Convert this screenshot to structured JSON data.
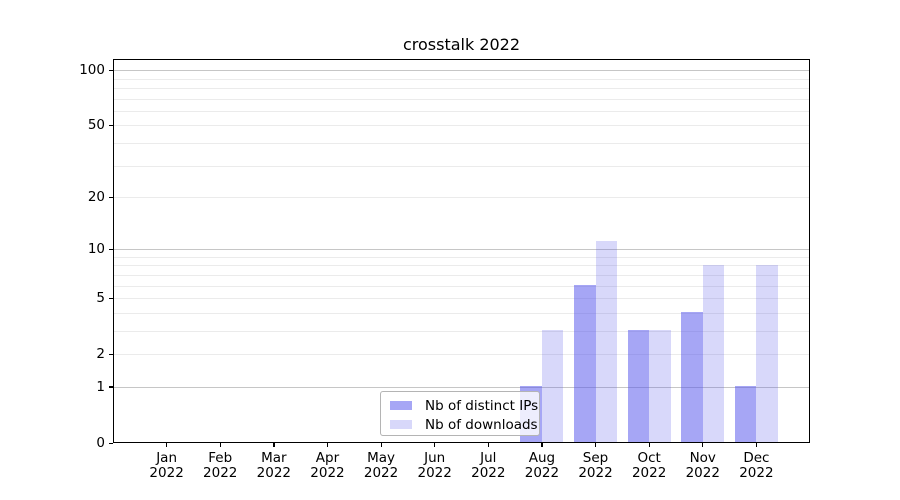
{
  "title": "crosstalk 2022",
  "chart_data": {
    "type": "bar",
    "title": "crosstalk 2022",
    "categories": [
      "Jan 2022",
      "Feb 2022",
      "Mar 2022",
      "Apr 2022",
      "May 2022",
      "Jun 2022",
      "Jul 2022",
      "Aug 2022",
      "Sep 2022",
      "Oct 2022",
      "Nov 2022",
      "Dec 2022"
    ],
    "series": [
      {
        "name": "Nb of distinct IPs",
        "values": [
          0,
          0,
          0,
          0,
          0,
          0,
          0,
          1,
          6,
          3,
          4,
          1
        ],
        "color": "rgba(85,85,235,0.52)",
        "color_flat": "#a7a7f3"
      },
      {
        "name": "Nb of downloads",
        "values": [
          0,
          0,
          0,
          0,
          0,
          0,
          0,
          3,
          11,
          3,
          8,
          8
        ],
        "color": "rgba(85,85,235,0.23)",
        "color_flat": "#d8d8f9"
      }
    ],
    "yscale": "log1p",
    "yticks": [
      0,
      1,
      2,
      5,
      10,
      20,
      50,
      100
    ],
    "ylim": [
      0,
      115
    ],
    "xlabel": "",
    "ylabel": "",
    "grid": "horizontal",
    "grid_minor_color": "#ebebeb",
    "grid_major_color": "#c6c6c6",
    "legend_position": "lower center",
    "legend_labels": [
      "Nb of distinct IPs",
      "Nb of downloads"
    ]
  }
}
